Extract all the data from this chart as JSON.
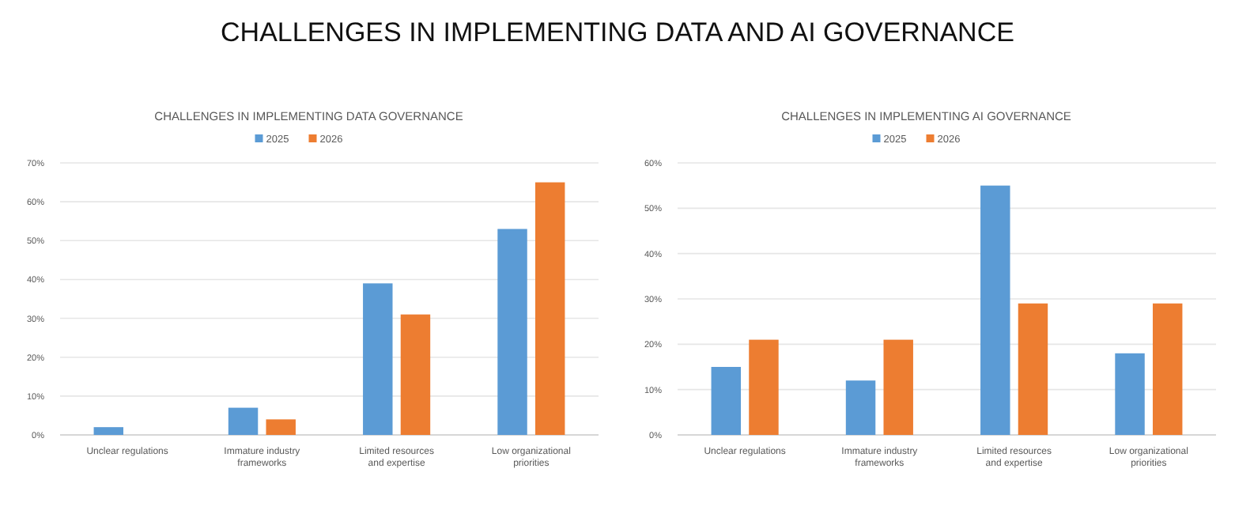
{
  "chart_data": [
    {
      "type": "other",
      "title": "CHALLENGES IN IMPLEMENTING DATA AND AI GOVERNANCE"
    },
    {
      "type": "bar",
      "title": "CHALLENGES IN IMPLEMENTING DATA GOVERNANCE",
      "categories": [
        "Unclear regulations",
        "Immature industry frameworks",
        "Limited resources and expertise",
        "Low organizational priorities"
      ],
      "series": [
        {
          "name": "2025",
          "color": "#5b9bd5",
          "values": [
            2,
            7,
            39,
            53
          ]
        },
        {
          "name": "2026",
          "color": "#ed7d31",
          "values": [
            0,
            4,
            31,
            65
          ]
        }
      ],
      "ylim": [
        0,
        70
      ],
      "yticks": [
        {
          "value": 0,
          "label": "0%"
        },
        {
          "value": 10,
          "label": "10%"
        },
        {
          "value": 20,
          "label": "20%"
        },
        {
          "value": 30,
          "label": "30%"
        },
        {
          "value": 40,
          "label": "40%"
        },
        {
          "value": 50,
          "label": "50%"
        },
        {
          "value": 60,
          "label": "60%"
        },
        {
          "value": 70,
          "label": "70%"
        }
      ],
      "grid": "y",
      "legend": "top"
    },
    {
      "type": "bar",
      "title": "CHALLENGES IN IMPLEMENTING AI GOVERNANCE",
      "categories": [
        "Unclear regulations",
        "Immature industry frameworks",
        "Limited resources and expertise",
        "Low organizational priorities"
      ],
      "series": [
        {
          "name": "2025",
          "color": "#5b9bd5",
          "values": [
            15,
            12,
            55,
            18
          ]
        },
        {
          "name": "2026",
          "color": "#ed7d31",
          "values": [
            21,
            21,
            29,
            29
          ]
        }
      ],
      "ylim": [
        0,
        60
      ],
      "yticks": [
        {
          "value": 0,
          "label": "0%"
        },
        {
          "value": 10,
          "label": "10%"
        },
        {
          "value": 20,
          "label": "20%"
        },
        {
          "value": 30,
          "label": "30%"
        },
        {
          "value": 40,
          "label": "40%"
        },
        {
          "value": 50,
          "label": "50%"
        },
        {
          "value": 60,
          "label": "60%"
        }
      ],
      "grid": "y",
      "legend": "top"
    }
  ]
}
